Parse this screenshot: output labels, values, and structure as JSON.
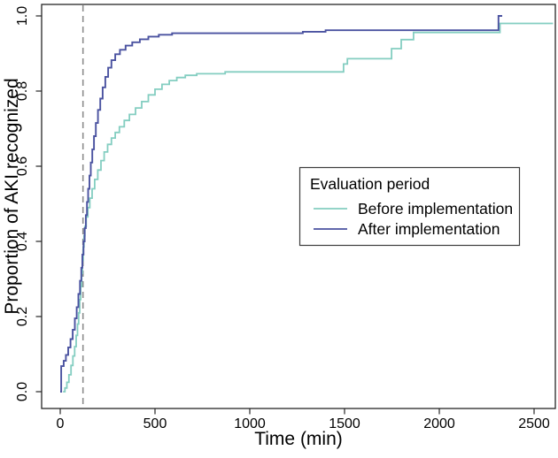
{
  "figure": {
    "background_color": "#ffffff",
    "frame_color": "#262626"
  },
  "chart_data": {
    "type": "line",
    "line_style": "step",
    "title": "",
    "xlabel": "Time (min)",
    "ylabel": "Proportion of AKI recognized",
    "xlim": [
      0,
      2600
    ],
    "ylim": [
      0.0,
      1.0
    ],
    "x_ticks": [
      0,
      500,
      1000,
      1500,
      2000,
      2500
    ],
    "y_ticks": [
      0.0,
      0.2,
      0.4,
      0.6,
      0.8,
      1.0
    ],
    "grid": false,
    "reference_line": {
      "axis": "x",
      "value": 120,
      "style": "dashed",
      "color": "#8c8c8c"
    },
    "legend": {
      "title": "Evaluation period",
      "position": "center-right",
      "border": true,
      "entries": [
        {
          "label": "Before implementation",
          "color": "#84CEC1"
        },
        {
          "label": "After implementation",
          "color": "#4A52A0"
        }
      ]
    },
    "series": [
      {
        "name": "Before implementation",
        "color": "#84CEC1",
        "end_t": 2600,
        "points": [
          [
            15,
            0
          ],
          [
            25,
            0.01
          ],
          [
            35,
            0.025
          ],
          [
            46,
            0.045
          ],
          [
            57,
            0.07
          ],
          [
            67,
            0.095
          ],
          [
            76,
            0.12
          ],
          [
            84,
            0.15
          ],
          [
            91,
            0.18
          ],
          [
            97,
            0.21
          ],
          [
            103,
            0.245
          ],
          [
            108,
            0.28
          ],
          [
            113,
            0.315
          ],
          [
            117,
            0.35
          ],
          [
            121,
            0.385
          ],
          [
            125,
            0.415
          ],
          [
            130,
            0.44
          ],
          [
            137,
            0.465
          ],
          [
            146,
            0.49
          ],
          [
            156,
            0.515
          ],
          [
            168,
            0.54
          ],
          [
            182,
            0.565
          ],
          [
            198,
            0.59
          ],
          [
            215,
            0.615
          ],
          [
            232,
            0.638
          ],
          [
            250,
            0.658
          ],
          [
            270,
            0.675
          ],
          [
            290,
            0.69
          ],
          [
            312,
            0.705
          ],
          [
            338,
            0.722
          ],
          [
            365,
            0.738
          ],
          [
            397,
            0.755
          ],
          [
            430,
            0.772
          ],
          [
            465,
            0.79
          ],
          [
            500,
            0.805
          ],
          [
            537,
            0.818
          ],
          [
            575,
            0.828
          ],
          [
            615,
            0.836
          ],
          [
            660,
            0.842
          ],
          [
            720,
            0.846
          ],
          [
            870,
            0.851
          ],
          [
            1495,
            0.872
          ],
          [
            1515,
            0.886
          ],
          [
            1748,
            0.913
          ],
          [
            1799,
            0.937
          ],
          [
            1864,
            0.956
          ],
          [
            2320,
            0.98
          ]
        ]
      },
      {
        "name": "After implementation",
        "color": "#4A52A0",
        "end_t": 2332,
        "points": [
          [
            0,
            0
          ],
          [
            5,
            0.068
          ],
          [
            18,
            0.082
          ],
          [
            30,
            0.098
          ],
          [
            42,
            0.118
          ],
          [
            54,
            0.14
          ],
          [
            66,
            0.165
          ],
          [
            77,
            0.195
          ],
          [
            87,
            0.225
          ],
          [
            96,
            0.26
          ],
          [
            104,
            0.295
          ],
          [
            111,
            0.33
          ],
          [
            117,
            0.365
          ],
          [
            123,
            0.4
          ],
          [
            129,
            0.435
          ],
          [
            135,
            0.47
          ],
          [
            141,
            0.505
          ],
          [
            147,
            0.54
          ],
          [
            154,
            0.575
          ],
          [
            161,
            0.61
          ],
          [
            169,
            0.645
          ],
          [
            178,
            0.68
          ],
          [
            188,
            0.715
          ],
          [
            199,
            0.75
          ],
          [
            211,
            0.78
          ],
          [
            224,
            0.81
          ],
          [
            238,
            0.838
          ],
          [
            253,
            0.862
          ],
          [
            270,
            0.882
          ],
          [
            290,
            0.898
          ],
          [
            315,
            0.91
          ],
          [
            345,
            0.921
          ],
          [
            380,
            0.93
          ],
          [
            420,
            0.938
          ],
          [
            465,
            0.945
          ],
          [
            520,
            0.95
          ],
          [
            590,
            0.954
          ],
          [
            1280,
            0.958
          ],
          [
            1400,
            0.962
          ],
          [
            2312,
            1.0
          ]
        ]
      }
    ]
  }
}
